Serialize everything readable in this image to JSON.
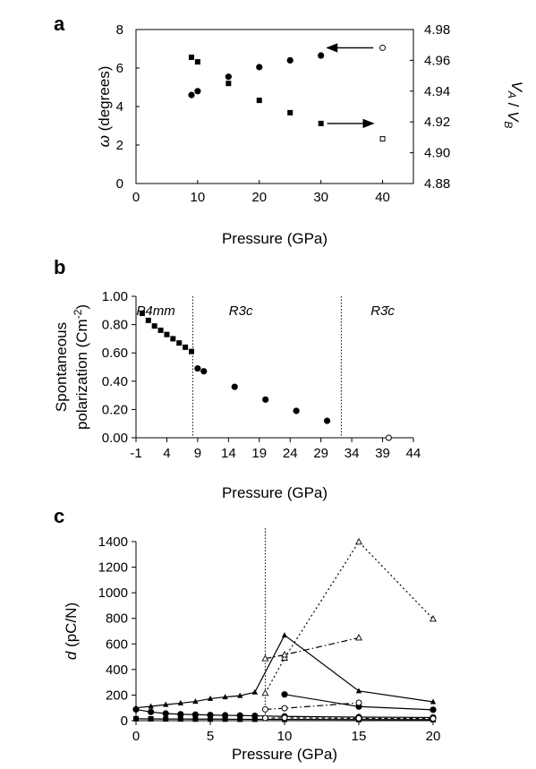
{
  "chart_data": [
    {
      "panel_label": "a",
      "type": "scatter",
      "xlabel": "Pressure (GPa)",
      "ylabel": "ω (degrees)",
      "ylabel2": "VA / VB",
      "xlim": [
        0,
        45
      ],
      "ylim": [
        0,
        8
      ],
      "ylim2": [
        4.88,
        4.98
      ],
      "xticks": [
        0,
        10,
        20,
        30,
        40
      ],
      "yticks": [
        0,
        2,
        4,
        6,
        8
      ],
      "yticks2": [
        4.88,
        4.9,
        4.92,
        4.94,
        4.96,
        4.98
      ],
      "series": [
        {
          "marker": "circle-filled",
          "axis": "left",
          "x": [
            9,
            10,
            15,
            20,
            25,
            30
          ],
          "y": [
            4.6,
            4.8,
            5.55,
            6.05,
            6.4,
            6.65
          ]
        },
        {
          "marker": "circle-open",
          "axis": "left",
          "x": [
            40
          ],
          "y": [
            7.05
          ]
        },
        {
          "marker": "square-filled",
          "axis": "right",
          "x": [
            9,
            10,
            15,
            20,
            25,
            30
          ],
          "y": [
            4.962,
            4.959,
            4.945,
            4.934,
            4.926,
            4.919
          ]
        },
        {
          "marker": "square-open",
          "axis": "right",
          "x": [
            40
          ],
          "y": [
            4.909
          ]
        }
      ],
      "annotations": [
        {
          "type": "arrow",
          "direction": "left",
          "from_x": 38.5,
          "to_x": 31,
          "y": 7.05,
          "axis": "left"
        },
        {
          "type": "arrow",
          "direction": "right",
          "from_x": 31,
          "to_x": 38.5,
          "y": 4.919,
          "axis": "right"
        }
      ]
    },
    {
      "panel_label": "b",
      "type": "scatter",
      "xlabel": "Pressure (GPa)",
      "ylabel_line1": "Spontaneous",
      "ylabel_line2": "polarization (Cm",
      "ylabel_sup": "-2",
      "ylabel_end": ")",
      "xlim": [
        -1,
        44
      ],
      "ylim": [
        0,
        1.0
      ],
      "xticks": [
        -1,
        4,
        9,
        14,
        19,
        24,
        29,
        34,
        39,
        44
      ],
      "yticks": [
        0.0,
        0.2,
        0.4,
        0.6,
        0.8,
        1.0
      ],
      "ytick_labels": [
        "0.00",
        "0.20",
        "0.40",
        "0.60",
        "0.80",
        "1.00"
      ],
      "phase_boundaries": [
        8.2,
        32.3
      ],
      "phase_labels": [
        {
          "text": "P4mm",
          "x": 2.2
        },
        {
          "text": "R3c",
          "x": 16
        },
        {
          "text": "R3̄c",
          "x": 39
        }
      ],
      "series": [
        {
          "marker": "square-filled",
          "x": [
            0,
            1,
            2,
            3,
            4,
            5,
            6,
            7,
            8
          ],
          "y": [
            0.88,
            0.83,
            0.79,
            0.76,
            0.73,
            0.7,
            0.67,
            0.64,
            0.61
          ]
        },
        {
          "marker": "circle-filled",
          "x": [
            9,
            10,
            15,
            20,
            25,
            30
          ],
          "y": [
            0.49,
            0.47,
            0.36,
            0.27,
            0.19,
            0.12
          ]
        },
        {
          "marker": "circle-open",
          "x": [
            40
          ],
          "y": [
            0.0
          ]
        }
      ]
    },
    {
      "panel_label": "c",
      "type": "line",
      "xlabel": "Pressure (GPa)",
      "ylabel": "d (pC/N)",
      "xlim": [
        0,
        20
      ],
      "ylim": [
        0,
        1400
      ],
      "xticks": [
        0,
        5,
        10,
        15,
        20
      ],
      "yticks": [
        0,
        200,
        400,
        600,
        800,
        1000,
        1200,
        1400
      ],
      "phase_boundaries": [
        8.7
      ],
      "series": [
        {
          "style": "solid",
          "marker": "triangle-filled",
          "x": [
            0,
            1,
            2,
            3,
            4,
            5,
            6,
            7,
            8,
            10,
            15,
            20
          ],
          "y": [
            100,
            112,
            125,
            137,
            150,
            172,
            185,
            195,
            222,
            668,
            232,
            147
          ]
        },
        {
          "style": "solid",
          "marker": "circle-filled",
          "x": [
            10,
            15,
            20
          ],
          "y": [
            205,
            110,
            85
          ]
        },
        {
          "style": "solid",
          "marker": "circle-filled",
          "x": [
            0,
            1,
            2,
            3,
            4,
            5,
            6,
            7,
            8,
            10,
            15,
            20
          ],
          "y": [
            88,
            68,
            56,
            50,
            47,
            44,
            42,
            40,
            38,
            33,
            28,
            25
          ]
        },
        {
          "style": "solid",
          "marker": "square-filled",
          "x": [
            0,
            1,
            2,
            3,
            4,
            5,
            6,
            7,
            8,
            10,
            15,
            20
          ],
          "y": [
            15,
            14,
            13,
            13,
            12,
            12,
            12,
            11,
            11,
            10,
            9,
            8
          ]
        },
        {
          "style": "dotted",
          "marker": "triangle-open",
          "x": [
            8.7,
            10,
            15,
            20
          ],
          "y": [
            215,
            490,
            1398,
            795
          ]
        },
        {
          "style": "dashdot",
          "marker": "triangle-open",
          "x": [
            8.7,
            10,
            15
          ],
          "y": [
            485,
            515,
            648
          ]
        },
        {
          "style": "dashdot",
          "marker": "circle-open",
          "x": [
            8.7,
            10,
            15
          ],
          "y": [
            88,
            97,
            140
          ]
        },
        {
          "style": "dashed",
          "marker": "circle-open",
          "x": [
            8.7,
            10,
            15,
            20
          ],
          "y": [
            20,
            22,
            18,
            16
          ]
        }
      ]
    }
  ]
}
